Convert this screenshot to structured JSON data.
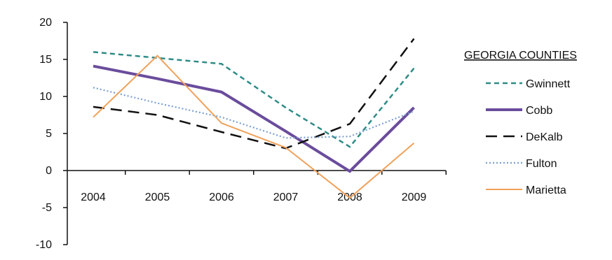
{
  "chart_data": {
    "type": "line",
    "categories": [
      "2004",
      "2005",
      "2006",
      "2007",
      "2008",
      "2009"
    ],
    "ylim": [
      -10,
      20
    ],
    "yticks": [
      -10,
      -5,
      0,
      5,
      10,
      15,
      20
    ],
    "grid": false,
    "legend": {
      "title": "GEORGIA COUNTIES",
      "placement": "right"
    },
    "series": [
      {
        "name": "Gwinnett",
        "values": [
          16,
          15.2,
          14.4,
          8.5,
          3.2,
          13.8
        ],
        "color": "#2e8b86",
        "style": "short-dash"
      },
      {
        "name": "Cobb",
        "values": [
          14.1,
          12.4,
          10.6,
          5.3,
          -0.1,
          8.5
        ],
        "color": "#6a4c9c",
        "style": "solid-thick"
      },
      {
        "name": "DeKalb",
        "values": [
          8.6,
          7.5,
          5.2,
          3,
          6.3,
          17.8
        ],
        "color": "#111111",
        "style": "long-dash"
      },
      {
        "name": "Fulton",
        "values": [
          11.2,
          9.1,
          7.2,
          4.4,
          4.6,
          8
        ],
        "color": "#7a9fd0",
        "style": "dotted"
      },
      {
        "name": "Marietta",
        "values": [
          7.2,
          15.5,
          6.4,
          3.1,
          -3.7,
          3.7
        ],
        "color": "#f0a15a",
        "style": "solid"
      }
    ]
  }
}
